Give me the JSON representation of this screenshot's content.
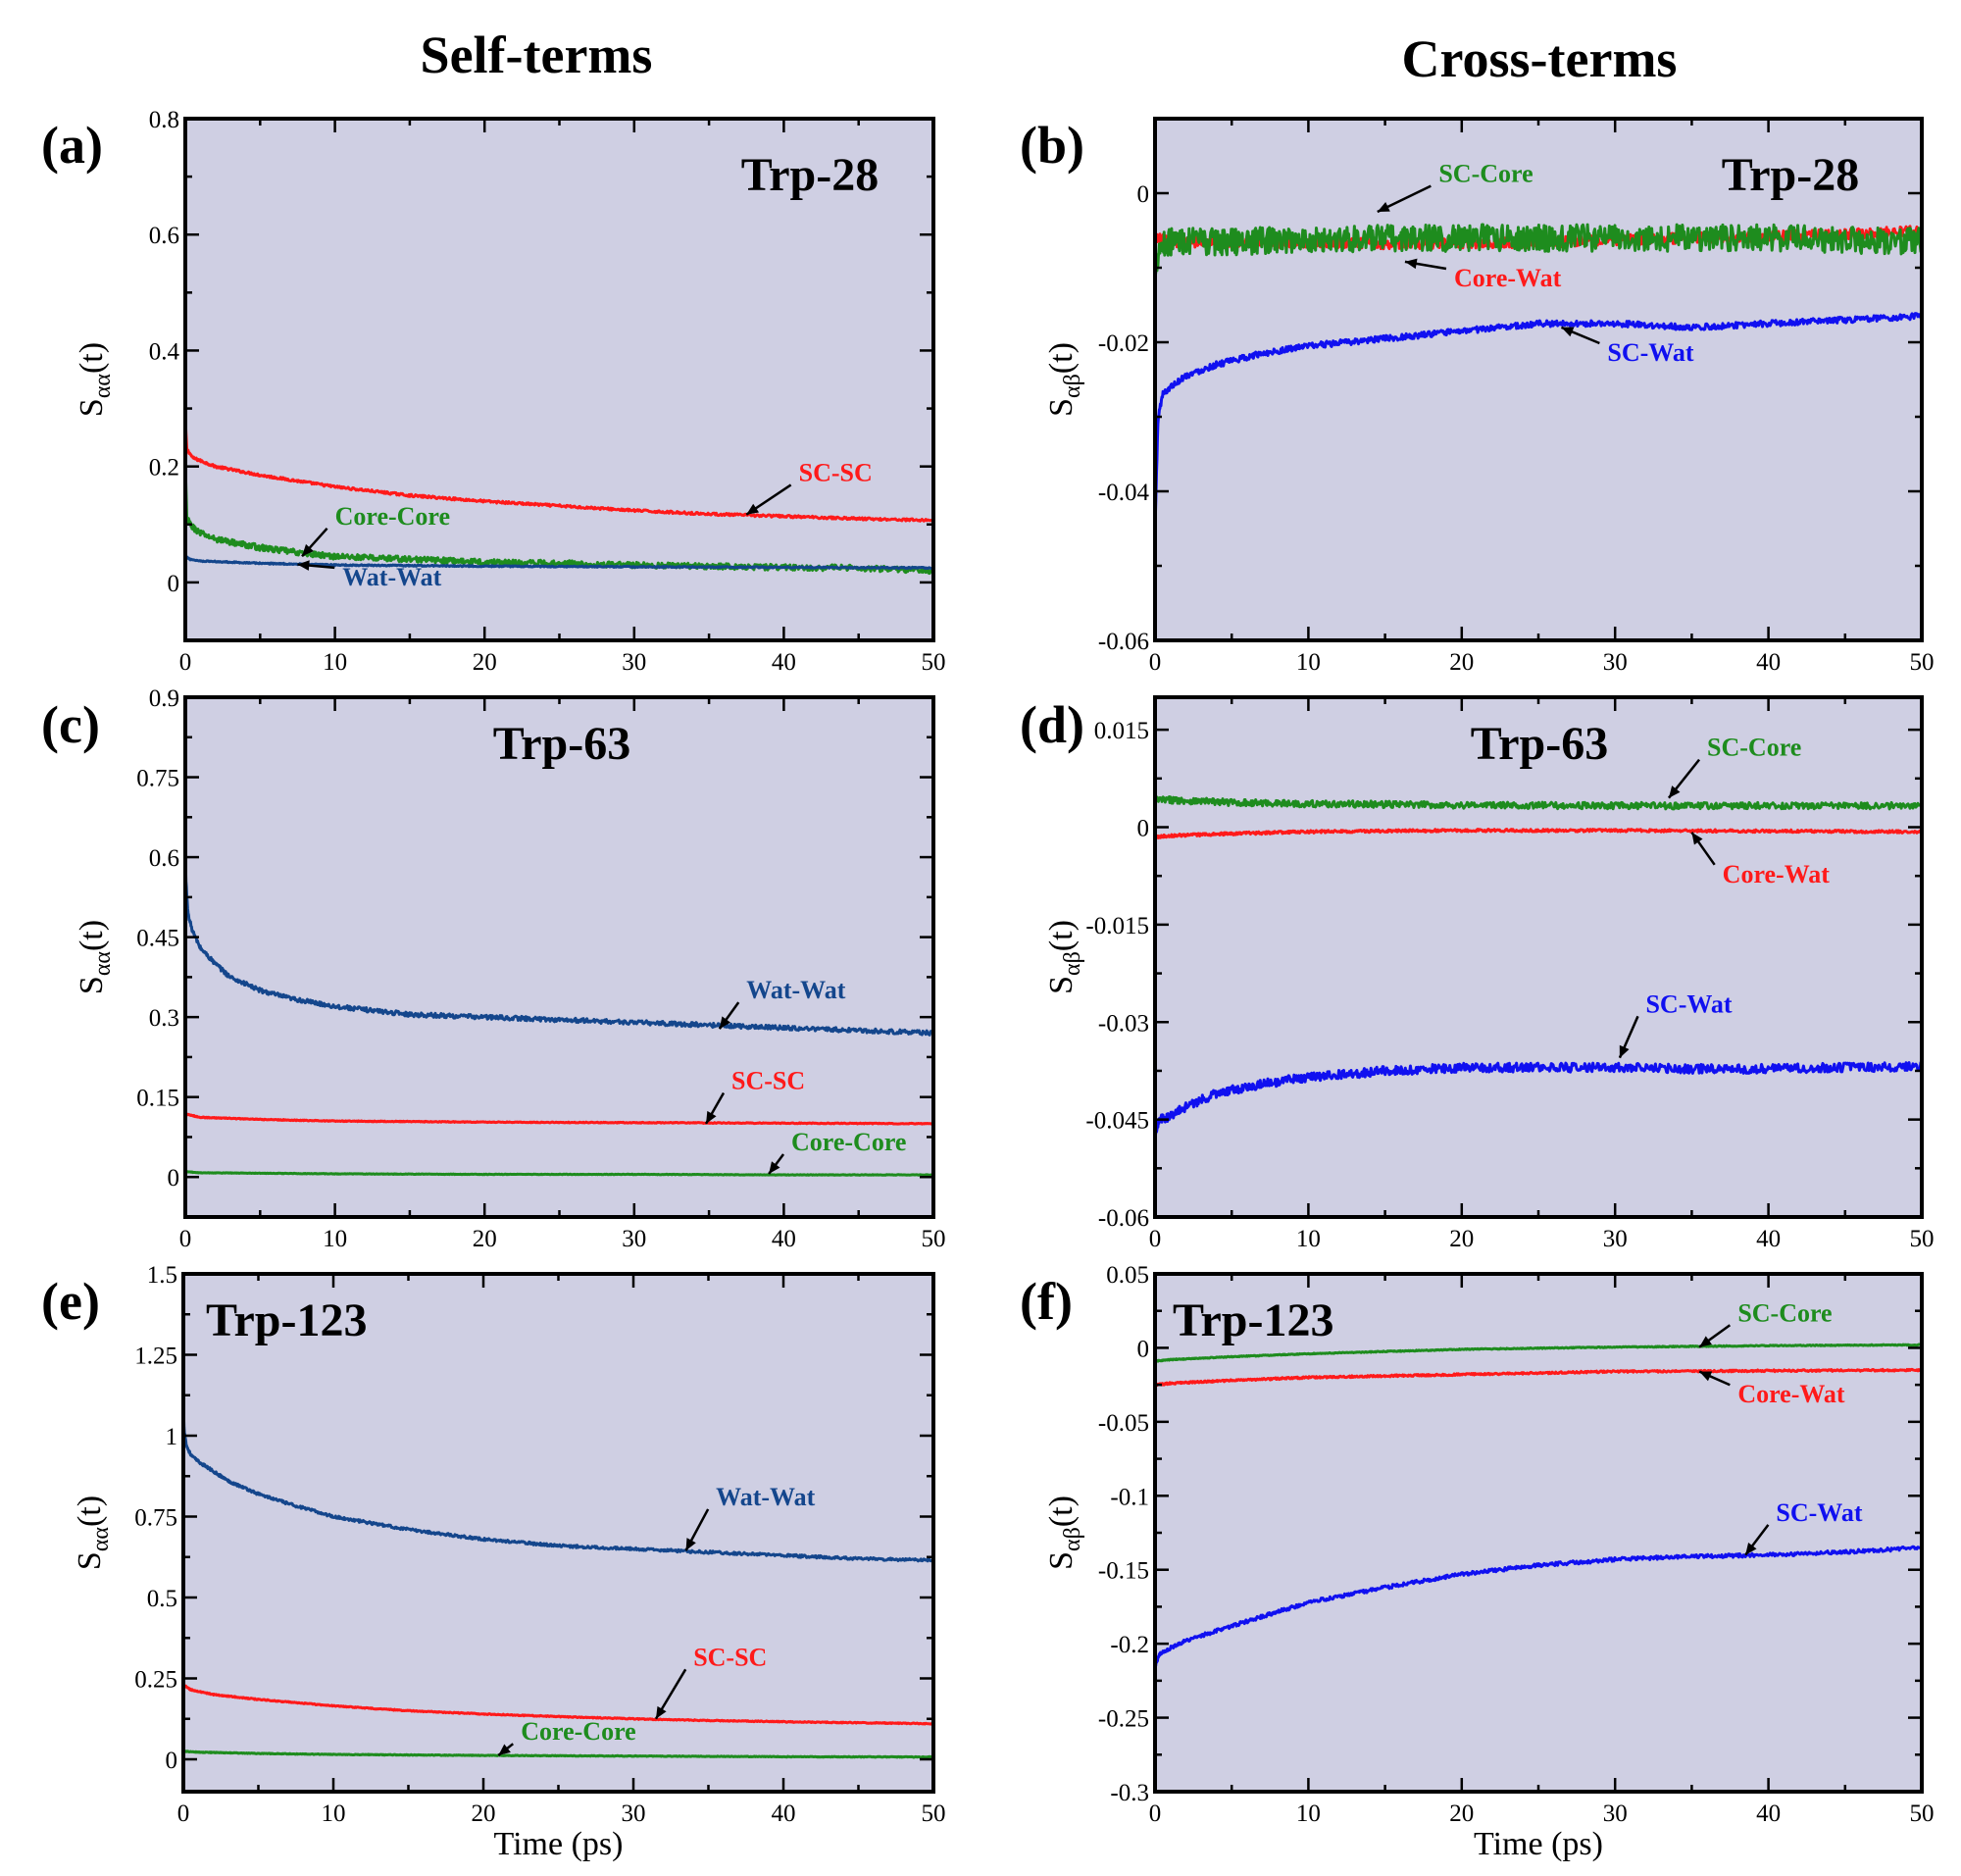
{
  "column_titles": {
    "left": "Self-terms",
    "right": "Cross-terms"
  },
  "colors": {
    "red": "#ff1a1a",
    "green": "#1e8c1e",
    "navy": "#14468c",
    "blue": "#1010f0",
    "background": "#cfcfe3"
  },
  "chart_data": [
    {
      "id": "a",
      "panel_label": "(a)",
      "title": "Trp-28",
      "type": "line",
      "xlabel": "",
      "ylabel": "S",
      "ylabel_sub": "αα",
      "ylabel_tail": "(t)",
      "xlim": [
        0,
        50
      ],
      "ylim": [
        -0.1,
        0.8
      ],
      "xticks": [
        0,
        10,
        20,
        30,
        40,
        50
      ],
      "xtick_labels": [
        "0",
        "10",
        "20",
        "30",
        "40",
        "50"
      ],
      "yticks": [
        0,
        0.2,
        0.4,
        0.6,
        0.8
      ],
      "ytick_labels": [
        "0",
        "0.2",
        "0.4",
        "0.6",
        "0.8"
      ],
      "series": [
        {
          "name": "SC-SC",
          "color": "#ff1a1a",
          "x": [
            0,
            0.1,
            0.5,
            1,
            2,
            5,
            10,
            15,
            20,
            25,
            30,
            35,
            40,
            45,
            50
          ],
          "y": [
            0.28,
            0.23,
            0.215,
            0.21,
            0.2,
            0.185,
            0.165,
            0.15,
            0.14,
            0.132,
            0.124,
            0.118,
            0.114,
            0.11,
            0.107
          ],
          "noise": 0.002
        },
        {
          "name": "Core-Core",
          "color": "#1e8c1e",
          "x": [
            0,
            0.1,
            0.5,
            1,
            2,
            5,
            8,
            10,
            15,
            20,
            25,
            30,
            35,
            40,
            45,
            50
          ],
          "y": [
            0.2,
            0.11,
            0.095,
            0.085,
            0.075,
            0.06,
            0.05,
            0.045,
            0.04,
            0.035,
            0.033,
            0.03,
            0.028,
            0.026,
            0.025,
            0.02
          ],
          "noise": 0.005
        },
        {
          "name": "Wat-Wat",
          "color": "#14468c",
          "x": [
            0,
            0.3,
            1,
            5,
            10,
            20,
            30,
            40,
            50
          ],
          "y": [
            0.045,
            0.04,
            0.037,
            0.033,
            0.03,
            0.028,
            0.027,
            0.026,
            0.025
          ],
          "noise": 0.001
        }
      ],
      "annotations": [
        {
          "text": "SC-SC",
          "color": "#ff1a1a",
          "x": 41,
          "y": 0.175,
          "arrow_to": [
            37.5,
            0.117
          ]
        },
        {
          "text": "Core-Core",
          "color": "#1e8c1e",
          "x": 10,
          "y": 0.1,
          "arrow_to": [
            7.8,
            0.045
          ]
        },
        {
          "text": "Wat-Wat",
          "color": "#14468c",
          "x": 10.5,
          "y": -0.005,
          "arrow_to": [
            7.5,
            0.031
          ]
        }
      ]
    },
    {
      "id": "b",
      "panel_label": "(b)",
      "title": "Trp-28",
      "type": "line",
      "xlabel": "",
      "ylabel": "S",
      "ylabel_sub": "αβ",
      "ylabel_tail": "(t)",
      "xlim": [
        0,
        50
      ],
      "ylim": [
        -0.06,
        0.01
      ],
      "xticks": [
        0,
        10,
        20,
        30,
        40,
        50
      ],
      "xtick_labels": [
        "0",
        "10",
        "20",
        "30",
        "40",
        "50"
      ],
      "yticks": [
        -0.06,
        -0.04,
        -0.02,
        0
      ],
      "ytick_labels": [
        "-0.06",
        "-0.04",
        "-0.02",
        "0"
      ],
      "series": [
        {
          "name": "Core-Wat",
          "color": "#ff1a1a",
          "x": [
            0,
            1,
            5,
            10,
            15,
            20,
            25,
            30,
            35,
            40,
            45,
            50
          ],
          "y": [
            -0.006,
            -0.0065,
            -0.0066,
            -0.0066,
            -0.0068,
            -0.0067,
            -0.0066,
            -0.0063,
            -0.006,
            -0.0058,
            -0.0055,
            -0.005
          ],
          "noise": 0.0007
        },
        {
          "name": "SC-Core",
          "color": "#1e8c1e",
          "x": [
            0,
            0.3,
            1,
            5,
            10,
            20,
            30,
            40,
            50
          ],
          "y": [
            -0.01,
            -0.007,
            -0.0065,
            -0.0065,
            -0.0062,
            -0.006,
            -0.006,
            -0.006,
            -0.0065
          ],
          "noise": 0.0018
        },
        {
          "name": "SC-Wat",
          "color": "#1010f0",
          "x": [
            0,
            0.2,
            0.5,
            1,
            2,
            4,
            7,
            10,
            15,
            20,
            25,
            30,
            35,
            40,
            45,
            50
          ],
          "y": [
            -0.045,
            -0.03,
            -0.027,
            -0.026,
            -0.0245,
            -0.023,
            -0.0215,
            -0.0205,
            -0.0195,
            -0.0185,
            -0.0175,
            -0.0175,
            -0.018,
            -0.0175,
            -0.017,
            -0.0165
          ],
          "noise": 0.0004
        }
      ],
      "annotations": [
        {
          "text": "SC-Core",
          "color": "#1e8c1e",
          "x": 18.5,
          "y": 0.0015,
          "arrow_to": [
            14.5,
            -0.0025
          ]
        },
        {
          "text": "Core-Wat",
          "color": "#ff1a1a",
          "x": 19.5,
          "y": -0.0125,
          "arrow_to": [
            16.3,
            -0.0092
          ]
        },
        {
          "text": "SC-Wat",
          "color": "#1010f0",
          "x": 29.5,
          "y": -0.0225,
          "arrow_to": [
            26.5,
            -0.018
          ]
        }
      ]
    },
    {
      "id": "c",
      "panel_label": "(c)",
      "title": "Trp-63",
      "type": "line",
      "xlabel": "",
      "ylabel": "S",
      "ylabel_sub": "αα",
      "ylabel_tail": "(t)",
      "xlim": [
        0,
        50
      ],
      "ylim": [
        -0.075,
        0.9
      ],
      "xticks": [
        0,
        10,
        20,
        30,
        40,
        50
      ],
      "xtick_labels": [
        "0",
        "10",
        "20",
        "30",
        "40",
        "50"
      ],
      "yticks": [
        0,
        0.15,
        0.3,
        0.45,
        0.6,
        0.75,
        0.9
      ],
      "ytick_labels": [
        "0",
        "0.15",
        "0.3",
        "0.45",
        "0.6",
        "0.75",
        "0.9"
      ],
      "series": [
        {
          "name": "Wat-Wat",
          "color": "#14468c",
          "x": [
            0,
            0.05,
            0.2,
            0.5,
            1,
            2,
            3,
            5,
            7,
            10,
            15,
            20,
            25,
            30,
            35,
            40,
            45,
            50
          ],
          "y": [
            0.6,
            0.55,
            0.49,
            0.46,
            0.43,
            0.4,
            0.375,
            0.35,
            0.335,
            0.32,
            0.305,
            0.3,
            0.295,
            0.29,
            0.285,
            0.28,
            0.275,
            0.27
          ],
          "noise": 0.004
        },
        {
          "name": "SC-SC",
          "color": "#ff1a1a",
          "x": [
            0,
            1,
            5,
            10,
            20,
            30,
            40,
            50
          ],
          "y": [
            0.118,
            0.112,
            0.108,
            0.105,
            0.103,
            0.102,
            0.101,
            0.1
          ],
          "noise": 0.0008
        },
        {
          "name": "Core-Core",
          "color": "#1e8c1e",
          "x": [
            0,
            1,
            10,
            20,
            30,
            40,
            50
          ],
          "y": [
            0.01,
            0.008,
            0.006,
            0.005,
            0.005,
            0.004,
            0.004
          ],
          "noise": 0.0005
        }
      ],
      "annotations": [
        {
          "text": "Wat-Wat",
          "color": "#14468c",
          "x": 37.5,
          "y": 0.335,
          "arrow_to": [
            35.7,
            0.278
          ]
        },
        {
          "text": "SC-SC",
          "color": "#ff1a1a",
          "x": 36.5,
          "y": 0.165,
          "arrow_to": [
            34.8,
            0.1
          ]
        },
        {
          "text": "Core-Core",
          "color": "#1e8c1e",
          "x": 40.5,
          "y": 0.05,
          "arrow_to": [
            39,
            0.006
          ]
        }
      ]
    },
    {
      "id": "d",
      "panel_label": "(d)",
      "title": "Trp-63",
      "type": "line",
      "xlabel": "",
      "ylabel": "S",
      "ylabel_sub": "αβ",
      "ylabel_tail": "(t)",
      "xlim": [
        0,
        50
      ],
      "ylim": [
        -0.06,
        0.02
      ],
      "xticks": [
        0,
        10,
        20,
        30,
        40,
        50
      ],
      "xtick_labels": [
        "0",
        "10",
        "20",
        "30",
        "40",
        "50"
      ],
      "yticks": [
        -0.06,
        -0.045,
        -0.03,
        -0.015,
        0,
        0.015
      ],
      "ytick_labels": [
        "-0.06",
        "-0.045",
        "-0.03",
        "-0.015",
        "0",
        "0.015"
      ],
      "series": [
        {
          "name": "SC-Core",
          "color": "#1e8c1e",
          "x": [
            0,
            1,
            5,
            10,
            20,
            30,
            40,
            50
          ],
          "y": [
            0.0042,
            0.0042,
            0.0038,
            0.0036,
            0.0034,
            0.0033,
            0.0033,
            0.0033
          ],
          "noise": 0.0005
        },
        {
          "name": "Core-Wat",
          "color": "#ff1a1a",
          "x": [
            0,
            1,
            5,
            10,
            20,
            30,
            40,
            50
          ],
          "y": [
            -0.0015,
            -0.0013,
            -0.001,
            -0.0007,
            -0.0005,
            -0.0005,
            -0.0006,
            -0.0007
          ],
          "noise": 0.0002
        },
        {
          "name": "SC-Wat",
          "color": "#1010f0",
          "x": [
            0,
            0.3,
            1,
            2,
            4,
            7,
            10,
            15,
            20,
            25,
            30,
            35,
            40,
            45,
            50
          ],
          "y": [
            -0.047,
            -0.045,
            -0.0445,
            -0.043,
            -0.041,
            -0.0395,
            -0.0385,
            -0.0375,
            -0.037,
            -0.037,
            -0.037,
            -0.0372,
            -0.0372,
            -0.037,
            -0.0368
          ],
          "noise": 0.0007
        }
      ],
      "annotations": [
        {
          "text": "SC-Core",
          "color": "#1e8c1e",
          "x": 36,
          "y": 0.011,
          "arrow_to": [
            33.5,
            0.0045
          ]
        },
        {
          "text": "Core-Wat",
          "color": "#ff1a1a",
          "x": 37,
          "y": -0.0085,
          "arrow_to": [
            35,
            -0.0008
          ]
        },
        {
          "text": "SC-Wat",
          "color": "#1010f0",
          "x": 32,
          "y": -0.0285,
          "arrow_to": [
            30.3,
            -0.0355
          ]
        }
      ]
    },
    {
      "id": "e",
      "panel_label": "(e)",
      "title": "Trp-123",
      "type": "line",
      "xlabel": "Time (ps)",
      "ylabel": "S",
      "ylabel_sub": "αα",
      "ylabel_tail": "(t)",
      "xlim": [
        0,
        50
      ],
      "ylim": [
        -0.1,
        1.5
      ],
      "xticks": [
        0,
        10,
        20,
        30,
        40,
        50
      ],
      "xtick_labels": [
        "0",
        "10",
        "20",
        "30",
        "40",
        "50"
      ],
      "yticks": [
        0,
        0.25,
        0.5,
        0.75,
        1,
        1.25,
        1.5
      ],
      "ytick_labels": [
        "0",
        "0.25",
        "0.5",
        "0.75",
        "1",
        "1.25",
        "1.5"
      ],
      "series": [
        {
          "name": "Wat-Wat",
          "color": "#14468c",
          "x": [
            0,
            0.05,
            0.2,
            0.5,
            1,
            2,
            3,
            5,
            7,
            10,
            15,
            20,
            25,
            30,
            35,
            40,
            45,
            50
          ],
          "y": [
            1.1,
            1.02,
            0.97,
            0.94,
            0.92,
            0.89,
            0.86,
            0.82,
            0.79,
            0.75,
            0.71,
            0.68,
            0.66,
            0.65,
            0.64,
            0.63,
            0.62,
            0.615
          ],
          "noise": 0.004
        },
        {
          "name": "SC-SC",
          "color": "#ff1a1a",
          "x": [
            0,
            0.5,
            1,
            2,
            5,
            10,
            15,
            20,
            25,
            30,
            35,
            40,
            45,
            50
          ],
          "y": [
            0.23,
            0.215,
            0.21,
            0.2,
            0.185,
            0.165,
            0.15,
            0.14,
            0.132,
            0.125,
            0.12,
            0.116,
            0.113,
            0.11
          ],
          "noise": 0.0015
        },
        {
          "name": "Core-Core",
          "color": "#1e8c1e",
          "x": [
            0,
            1,
            5,
            10,
            20,
            30,
            40,
            50
          ],
          "y": [
            0.025,
            0.022,
            0.018,
            0.015,
            0.012,
            0.01,
            0.008,
            0.007
          ],
          "noise": 0.001
        }
      ],
      "annotations": [
        {
          "text": "Wat-Wat",
          "color": "#14468c",
          "x": 35.5,
          "y": 0.785,
          "arrow_to": [
            33.5,
            0.645
          ]
        },
        {
          "text": "SC-SC",
          "color": "#ff1a1a",
          "x": 34,
          "y": 0.29,
          "arrow_to": [
            31.5,
            0.125
          ]
        },
        {
          "text": "Core-Core",
          "color": "#1e8c1e",
          "x": 22.5,
          "y": 0.06,
          "arrow_to": [
            21,
            0.012
          ]
        }
      ]
    },
    {
      "id": "f",
      "panel_label": "(f)",
      "title": "Trp-123",
      "type": "line",
      "xlabel": "Time (ps)",
      "ylabel": "S",
      "ylabel_sub": "αβ",
      "ylabel_tail": "(t)",
      "xlim": [
        0,
        50
      ],
      "ylim": [
        -0.3,
        0.05
      ],
      "xticks": [
        0,
        10,
        20,
        30,
        40,
        50
      ],
      "xtick_labels": [
        "0",
        "10",
        "20",
        "30",
        "40",
        "50"
      ],
      "yticks": [
        -0.3,
        -0.25,
        -0.2,
        -0.15,
        -0.1,
        -0.05,
        0,
        0.05
      ],
      "ytick_labels": [
        "-0.3",
        "-0.25",
        "-0.2",
        "-0.15",
        "-0.1",
        "-0.05",
        "0",
        "0.05"
      ],
      "series": [
        {
          "name": "SC-Core",
          "color": "#1e8c1e",
          "x": [
            0,
            1,
            5,
            10,
            20,
            30,
            40,
            50
          ],
          "y": [
            -0.009,
            -0.008,
            -0.006,
            -0.004,
            -0.001,
            0.0005,
            0.0015,
            0.002
          ],
          "noise": 0.0003
        },
        {
          "name": "Core-Wat",
          "color": "#ff1a1a",
          "x": [
            0,
            1,
            5,
            10,
            20,
            30,
            40,
            50
          ],
          "y": [
            -0.025,
            -0.024,
            -0.022,
            -0.02,
            -0.018,
            -0.016,
            -0.0155,
            -0.015
          ],
          "noise": 0.0006
        },
        {
          "name": "SC-Wat",
          "color": "#1010f0",
          "x": [
            0,
            0.3,
            1,
            2,
            5,
            10,
            15,
            20,
            25,
            30,
            35,
            40,
            45,
            50
          ],
          "y": [
            -0.215,
            -0.207,
            -0.203,
            -0.198,
            -0.188,
            -0.172,
            -0.162,
            -0.153,
            -0.147,
            -0.143,
            -0.141,
            -0.14,
            -0.138,
            -0.135
          ],
          "noise": 0.0012
        }
      ],
      "annotations": [
        {
          "text": "SC-Core",
          "color": "#1e8c1e",
          "x": 38,
          "y": 0.018,
          "arrow_to": [
            35.5,
            0.0005
          ]
        },
        {
          "text": "Core-Wat",
          "color": "#ff1a1a",
          "x": 38,
          "y": -0.037,
          "arrow_to": [
            35.5,
            -0.016
          ]
        },
        {
          "text": "SC-Wat",
          "color": "#1010f0",
          "x": 40.5,
          "y": -0.117,
          "arrow_to": [
            38.5,
            -0.14
          ]
        }
      ]
    }
  ]
}
